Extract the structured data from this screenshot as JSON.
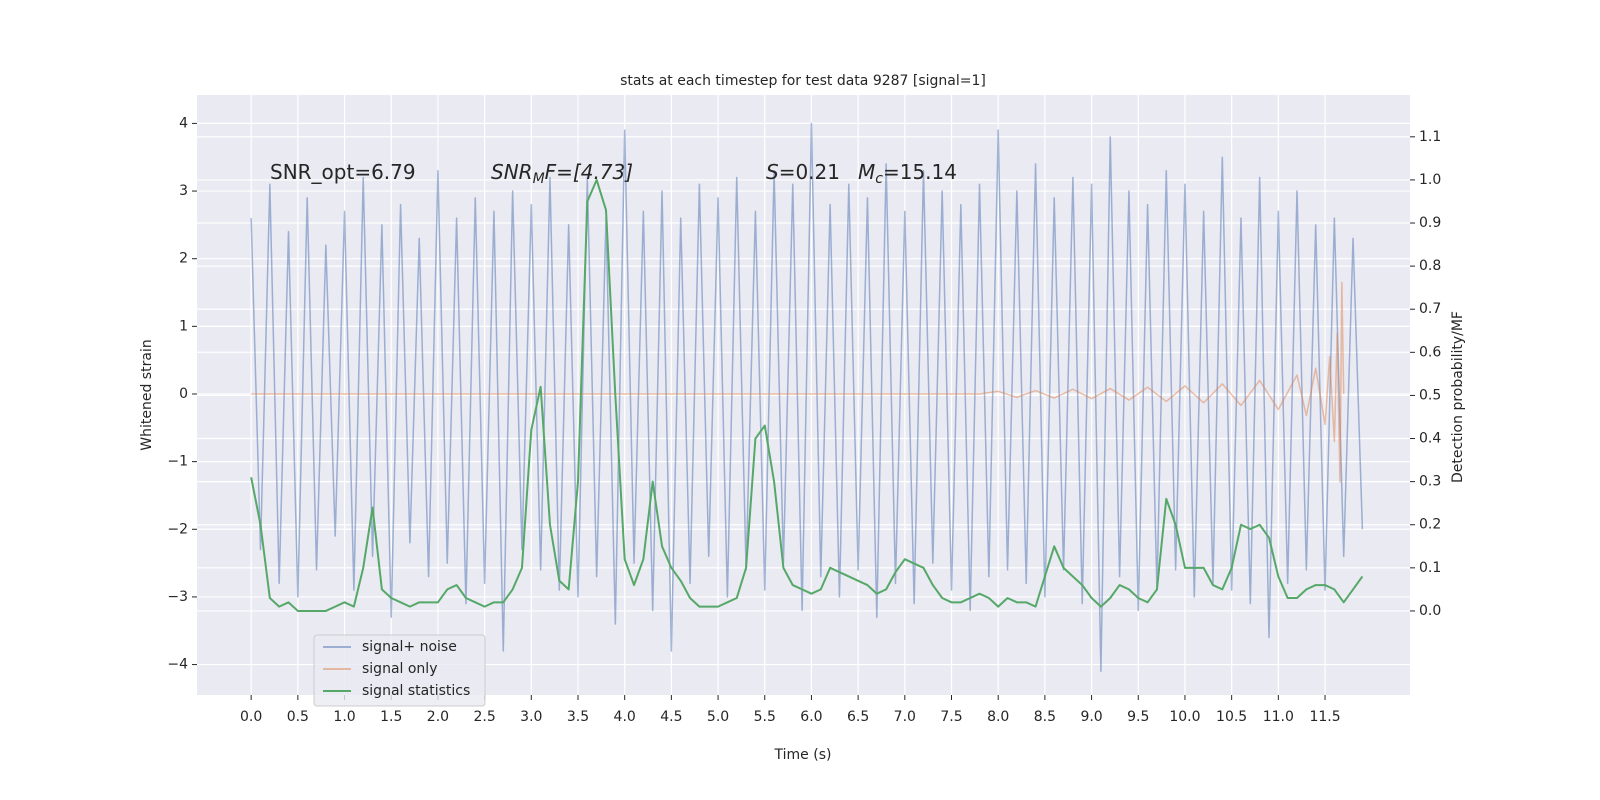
{
  "chart_data": {
    "type": "line",
    "title": "stats at each timestep for test data 9287 [signal=1]",
    "xlabel": "Time (s)",
    "ylabel": "Whitened strain",
    "y2label": "Detection probability/MF",
    "annotations": [
      [
        "SNR_opt=6.79"
      ],
      [
        "SNR",
        "M",
        "F=[4.73]"
      ],
      [
        "S",
        "=0.21"
      ],
      [
        "M",
        "c",
        "=15.14"
      ]
    ],
    "x": [
      0,
      0.1,
      0.2,
      0.3,
      0.4,
      0.5,
      0.6,
      0.7,
      0.8,
      0.9,
      1,
      1.1,
      1.2,
      1.3,
      1.4,
      1.5,
      1.6,
      1.7,
      1.8,
      1.9,
      2,
      2.1,
      2.2,
      2.3,
      2.4,
      2.5,
      2.6,
      2.7,
      2.8,
      2.9,
      3,
      3.1,
      3.2,
      3.3,
      3.4,
      3.5,
      3.6,
      3.7,
      3.8,
      3.9,
      4,
      4.1,
      4.2,
      4.3,
      4.4,
      4.5,
      4.6,
      4.7,
      4.8,
      4.9,
      5,
      5.1,
      5.2,
      5.3,
      5.4,
      5.5,
      5.6,
      5.7,
      5.8,
      5.9,
      6,
      6.1,
      6.2,
      6.3,
      6.4,
      6.5,
      6.6,
      6.7,
      6.8,
      6.9,
      7,
      7.1,
      7.2,
      7.3,
      7.4,
      7.5,
      7.6,
      7.7,
      7.8,
      7.9,
      8,
      8.1,
      8.2,
      8.3,
      8.4,
      8.5,
      8.6,
      8.7,
      8.8,
      8.9,
      9,
      9.1,
      9.2,
      9.3,
      9.4,
      9.5,
      9.6,
      9.7,
      9.8,
      9.9,
      10,
      10.1,
      10.2,
      10.3,
      10.4,
      10.5,
      10.6,
      10.7,
      10.8,
      10.9,
      11,
      11.1,
      11.2,
      11.3,
      11.4,
      11.5,
      11.6,
      11.7,
      11.8,
      11.9
    ],
    "series": [
      {
        "name": "signal+ noise",
        "color": "#4c72b0",
        "values": [
          2.6,
          -2.3,
          3.1,
          -2.8,
          2.4,
          -3.0,
          2.9,
          -2.6,
          2.2,
          -2.1,
          2.7,
          -2.9,
          3.2,
          -2.4,
          2.5,
          -3.3,
          2.8,
          -2.2,
          2.3,
          -2.7,
          3.3,
          -2.5,
          2.6,
          -3.1,
          2.9,
          -2.8,
          2.7,
          -3.8,
          3.0,
          -2.3,
          2.8,
          -2.6,
          3.2,
          -2.9,
          2.5,
          -3.0,
          3.2,
          -2.7,
          2.6,
          -3.4,
          3.9,
          -2.5,
          2.7,
          -3.2,
          3.0,
          -3.8,
          2.6,
          -2.8,
          3.1,
          -2.4,
          2.9,
          -3.0,
          3.2,
          -2.6,
          2.7,
          -2.9,
          3.3,
          -2.5,
          3.1,
          -3.2,
          4.0,
          -2.7,
          2.8,
          -3.0,
          3.1,
          -2.6,
          2.9,
          -3.3,
          3.4,
          -2.8,
          2.7,
          -3.1,
          3.3,
          -2.5,
          3.0,
          -2.9,
          2.8,
          -3.2,
          3.1,
          -2.7,
          3.9,
          -2.6,
          3.0,
          -2.8,
          3.4,
          -3.0,
          2.9,
          -2.6,
          3.2,
          -3.1,
          3.1,
          -4.1,
          3.8,
          -2.7,
          3.0,
          -3.2,
          2.8,
          -2.9,
          3.3,
          -2.6,
          3.1,
          -3.0,
          2.7,
          -2.8,
          3.5,
          -2.9,
          2.6,
          -3.1,
          3.2,
          -3.6,
          2.7,
          -2.8,
          3.0,
          -2.6,
          2.5,
          -2.9,
          2.6,
          -2.4,
          2.3,
          -2.0
        ]
      },
      {
        "name": "signal only",
        "color": "#dd8452",
        "x": [
          0,
          7.8,
          8.0,
          8.2,
          8.4,
          8.6,
          8.8,
          9.0,
          9.2,
          9.4,
          9.6,
          9.8,
          10.0,
          10.2,
          10.4,
          10.6,
          10.8,
          11.0,
          11.2,
          11.3,
          11.4,
          11.5,
          11.55,
          11.6,
          11.63,
          11.66,
          11.68,
          11.7
        ],
        "values": [
          0,
          0,
          0.04,
          -0.05,
          0.05,
          -0.06,
          0.07,
          -0.07,
          0.08,
          -0.09,
          0.1,
          -0.11,
          0.12,
          -0.13,
          0.15,
          -0.17,
          0.2,
          -0.23,
          0.28,
          -0.32,
          0.38,
          -0.45,
          0.55,
          -0.7,
          0.9,
          -1.3,
          1.65,
          0
        ]
      },
      {
        "name": "signal statistics",
        "color": "#55a868",
        "axis": "y2",
        "values": [
          0.31,
          0.2,
          0.03,
          0.01,
          0.02,
          0.0,
          0.0,
          0.0,
          0.0,
          0.01,
          0.02,
          0.01,
          0.1,
          0.24,
          0.05,
          0.03,
          0.02,
          0.01,
          0.02,
          0.02,
          0.02,
          0.05,
          0.06,
          0.03,
          0.02,
          0.01,
          0.02,
          0.02,
          0.05,
          0.1,
          0.42,
          0.52,
          0.2,
          0.07,
          0.05,
          0.3,
          0.95,
          1.0,
          0.93,
          0.5,
          0.12,
          0.06,
          0.12,
          0.3,
          0.15,
          0.1,
          0.07,
          0.03,
          0.01,
          0.01,
          0.01,
          0.02,
          0.03,
          0.1,
          0.4,
          0.43,
          0.3,
          0.1,
          0.06,
          0.05,
          0.04,
          0.05,
          0.1,
          0.09,
          0.08,
          0.07,
          0.06,
          0.04,
          0.05,
          0.09,
          0.12,
          0.11,
          0.1,
          0.06,
          0.03,
          0.02,
          0.02,
          0.03,
          0.04,
          0.03,
          0.01,
          0.03,
          0.02,
          0.02,
          0.01,
          0.08,
          0.15,
          0.1,
          0.08,
          0.06,
          0.03,
          0.01,
          0.03,
          0.06,
          0.05,
          0.03,
          0.02,
          0.05,
          0.26,
          0.2,
          0.1,
          0.1,
          0.1,
          0.06,
          0.05,
          0.1,
          0.2,
          0.19,
          0.2,
          0.17,
          0.08,
          0.03,
          0.03,
          0.05,
          0.06,
          0.06,
          0.05,
          0.02,
          0.05,
          0.08
        ]
      }
    ],
    "xlim": [
      -0.58,
      12.41
    ],
    "ylim": [
      -4.45,
      4.42
    ],
    "y2lim": [
      -0.195,
      1.197
    ],
    "xticks": [
      {
        "value": 0,
        "label": "0.0"
      },
      0.5,
      {
        "value": 1,
        "label": "1.0"
      },
      1.5,
      {
        "value": 2,
        "label": "2.0"
      },
      2.5,
      {
        "value": 3,
        "label": "3.0"
      },
      3.5,
      {
        "value": 4,
        "label": "4.0"
      },
      4.5,
      {
        "value": 5,
        "label": "5.0"
      },
      5.5,
      {
        "value": 6,
        "label": "6.0"
      },
      6.5,
      {
        "value": 7,
        "label": "7.0"
      },
      7.5,
      {
        "value": 8,
        "label": "8.0"
      },
      8.5,
      {
        "value": 9,
        "label": "9.0"
      },
      9.5,
      {
        "value": 10,
        "label": "10.0"
      },
      10.5,
      {
        "value": 11,
        "label": "11.0"
      },
      11.5
    ],
    "yticks": [
      {
        "value": -4,
        "label": "−4"
      },
      {
        "value": -3,
        "label": "−3"
      },
      {
        "value": -2,
        "label": "−2"
      },
      {
        "value": -1,
        "label": "−1"
      },
      0,
      1,
      2,
      3,
      4
    ],
    "y2ticks": [
      {
        "value": 0,
        "label": "0.0"
      },
      0.1,
      0.2,
      0.3,
      0.4,
      0.5,
      0.6,
      0.7,
      0.8,
      0.9,
      {
        "value": 1,
        "label": "1.0"
      },
      1.1
    ],
    "grid": true,
    "legend": "lower left"
  }
}
